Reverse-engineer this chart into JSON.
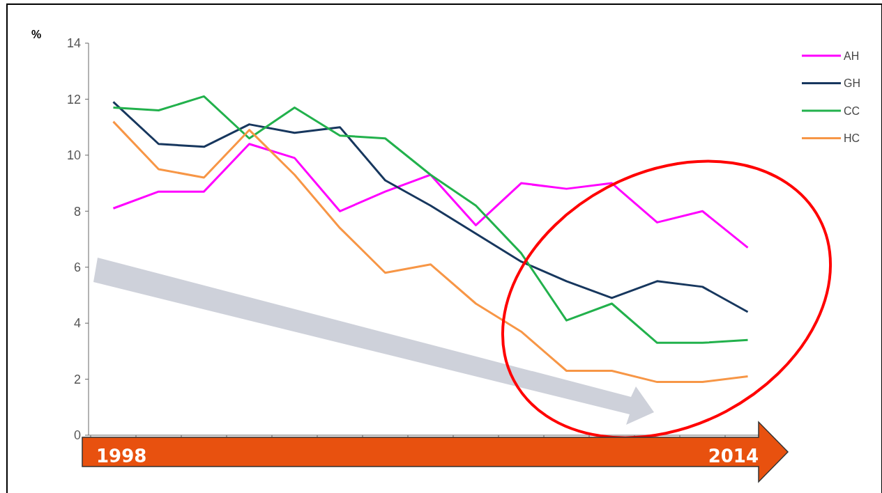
{
  "chart_data": {
    "type": "line",
    "ylabel": "%",
    "categories": [
      null,
      null,
      null,
      null,
      null,
      null,
      null,
      null,
      null,
      null,
      null,
      null,
      null,
      null,
      null
    ],
    "series": [
      {
        "name": "AH",
        "color": "#ff00ff",
        "values": [
          8.1,
          8.7,
          8.7,
          10.4,
          9.9,
          8.0,
          8.7,
          9.3,
          7.5,
          9.0,
          8.8,
          9.0,
          7.6,
          8.0,
          6.7
        ]
      },
      {
        "name": "GH",
        "color": "#17375e",
        "values": [
          11.9,
          10.4,
          10.3,
          11.1,
          10.8,
          11.0,
          9.1,
          8.2,
          7.2,
          6.2,
          5.5,
          4.9,
          5.5,
          5.3,
          4.4
        ]
      },
      {
        "name": "CC",
        "color": "#22b14c",
        "values": [
          11.7,
          11.6,
          12.1,
          10.6,
          11.7,
          10.7,
          10.6,
          9.3,
          8.2,
          6.5,
          4.1,
          4.7,
          3.3,
          3.3,
          3.4
        ]
      },
      {
        "name": "HC",
        "color": "#f79646",
        "values": [
          11.2,
          9.5,
          9.2,
          10.9,
          9.3,
          7.4,
          5.8,
          6.1,
          4.7,
          3.7,
          2.3,
          2.3,
          1.9,
          1.9,
          2.1
        ]
      }
    ],
    "ylim": [
      0,
      14
    ],
    "yticks": [
      0,
      2,
      4,
      6,
      8,
      10,
      12,
      14
    ],
    "grid": false,
    "legend": "top right",
    "marker": "none",
    "line_style": "solid",
    "annotations": [
      "1998",
      "2014"
    ]
  }
}
